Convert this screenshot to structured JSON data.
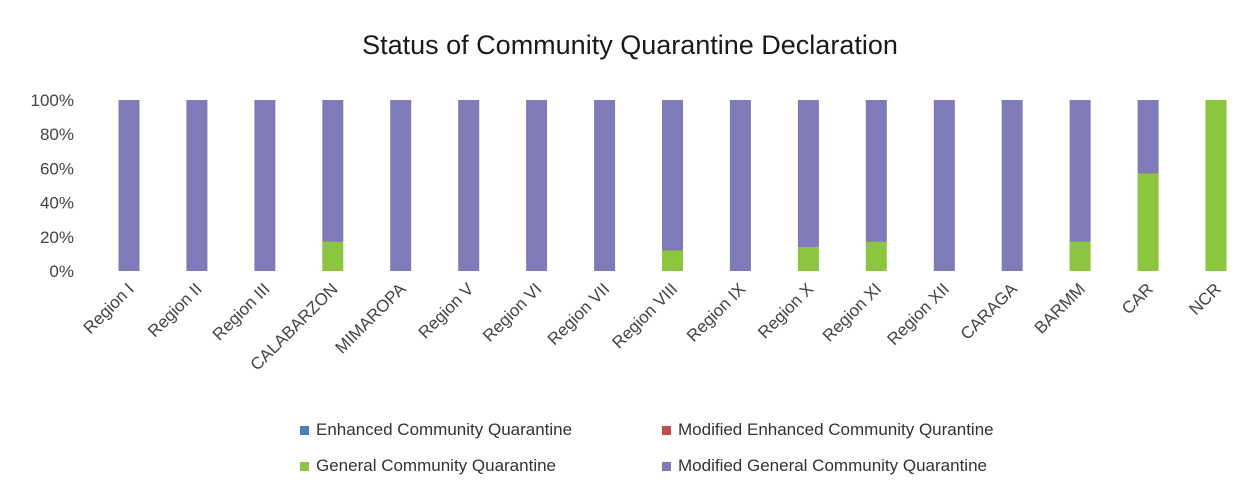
{
  "chart_data": {
    "type": "bar",
    "stacked": "percent",
    "title": "Status of Community Quarantine Declaration",
    "xlabel": "",
    "ylabel": "",
    "ylim": [
      0,
      100
    ],
    "yticks": [
      "0%",
      "20%",
      "40%",
      "60%",
      "80%",
      "100%"
    ],
    "grid": false,
    "legend_position": "bottom",
    "categories": [
      "Region I",
      "Region II",
      "Region III",
      "CALABARZON",
      "MIMAROPA",
      "Region V",
      "Region VI",
      "Region VII",
      "Region VIII",
      "Region IX",
      "Region X",
      "Region XI",
      "Region XII",
      "CARAGA",
      "BARMM",
      "CAR",
      "NCR"
    ],
    "series": [
      {
        "name": "Enhanced Community Quarantine",
        "color": "#4a7ebb",
        "values": [
          0,
          0,
          0,
          0,
          0,
          0,
          0,
          0,
          0,
          0,
          0,
          0,
          0,
          0,
          0,
          0,
          0
        ]
      },
      {
        "name": "Modified Enhanced Community Qurantine",
        "color": "#c0504d",
        "values": [
          0,
          0,
          0,
          0,
          0,
          0,
          0,
          0,
          0,
          0,
          0,
          0,
          0,
          0,
          0,
          0,
          0
        ]
      },
      {
        "name": "General Community Quarantine",
        "color": "#8cc63f",
        "values": [
          0,
          0,
          0,
          17,
          0,
          0,
          0,
          0,
          12,
          0,
          14,
          17,
          0,
          0,
          17,
          57,
          100
        ]
      },
      {
        "name": "Modified General Community Quarantine",
        "color": "#7f7ab8",
        "values": [
          100,
          100,
          100,
          83,
          100,
          100,
          100,
          100,
          88,
          100,
          86,
          83,
          100,
          100,
          83,
          43,
          0
        ]
      }
    ]
  }
}
